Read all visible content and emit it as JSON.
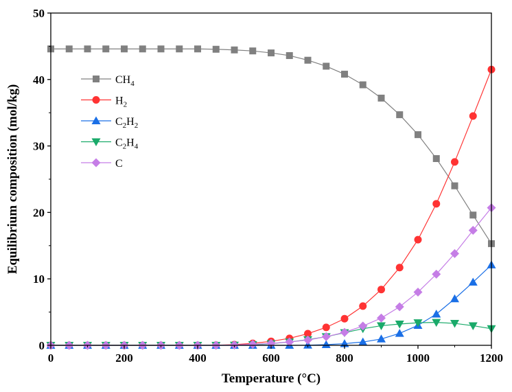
{
  "chart_data": {
    "type": "line",
    "title": "",
    "xlabel": "Temperature (°C)",
    "ylabel": "Equilibrium composition (mol/kg)",
    "xlim": [
      0,
      1200
    ],
    "ylim": [
      0,
      50
    ],
    "x_ticks": [
      0,
      200,
      400,
      600,
      800,
      1000,
      1200
    ],
    "x_tick_labels": [
      "0",
      "200",
      "400",
      "600",
      "800",
      "1000",
      "1200"
    ],
    "y_ticks": [
      0,
      10,
      20,
      30,
      40,
      50
    ],
    "y_tick_labels": [
      "0",
      "10",
      "20",
      "30",
      "40",
      "50"
    ],
    "grid": false,
    "legend_position": "top-left",
    "x": [
      0,
      50,
      100,
      150,
      200,
      250,
      300,
      350,
      400,
      450,
      500,
      550,
      600,
      650,
      700,
      750,
      800,
      850,
      900,
      950,
      1000,
      1050,
      1100,
      1150,
      1200
    ],
    "series": [
      {
        "name": "CH4",
        "label_main": "CH",
        "label_sub": "4",
        "label_tail": "",
        "label_sub2": "",
        "color": "#808080",
        "marker": "square",
        "values": [
          44.6,
          44.6,
          44.6,
          44.6,
          44.6,
          44.6,
          44.6,
          44.6,
          44.6,
          44.55,
          44.45,
          44.3,
          44.0,
          43.6,
          42.9,
          42.0,
          40.8,
          39.2,
          37.2,
          34.7,
          31.7,
          28.1,
          24.0,
          19.6,
          15.3
        ]
      },
      {
        "name": "H2",
        "label_main": "H",
        "label_sub": "2",
        "label_tail": "",
        "label_sub2": "",
        "color": "#ff3333",
        "marker": "circle",
        "values": [
          0,
          0,
          0,
          0,
          0,
          0,
          0,
          0,
          0,
          0.02,
          0.1,
          0.3,
          0.6,
          1.05,
          1.75,
          2.7,
          4.0,
          5.9,
          8.4,
          11.7,
          15.9,
          21.3,
          27.6,
          34.5,
          41.5
        ]
      },
      {
        "name": "C2H2",
        "label_main": "C",
        "label_sub": "2",
        "label_tail": "H",
        "label_sub2": "2",
        "color": "#1a6fe6",
        "marker": "triangle-up",
        "values": [
          0,
          0,
          0,
          0,
          0,
          0,
          0,
          0,
          0,
          0,
          0,
          0,
          0,
          0,
          0.02,
          0.1,
          0.25,
          0.5,
          0.95,
          1.8,
          3.0,
          4.7,
          7.0,
          9.5,
          12.1
        ]
      },
      {
        "name": "C2H4",
        "label_main": "C",
        "label_sub": "2",
        "label_tail": "H",
        "label_sub2": "4",
        "color": "#1aaa6a",
        "marker": "triangle-down",
        "values": [
          0,
          0,
          0,
          0,
          0,
          0,
          0,
          0,
          0,
          0,
          0.02,
          0.1,
          0.25,
          0.5,
          0.85,
          1.3,
          1.9,
          2.5,
          2.95,
          3.2,
          3.4,
          3.45,
          3.3,
          2.95,
          2.5
        ]
      },
      {
        "name": "C",
        "label_main": "C",
        "label_sub": "",
        "label_tail": "",
        "label_sub2": "",
        "color": "#c57de6",
        "marker": "diamond",
        "values": [
          0,
          0,
          0,
          0,
          0,
          0,
          0,
          0,
          0,
          0.01,
          0.05,
          0.15,
          0.3,
          0.5,
          0.8,
          1.3,
          1.95,
          2.9,
          4.1,
          5.8,
          8.0,
          10.7,
          13.8,
          17.3,
          20.7
        ]
      }
    ]
  }
}
